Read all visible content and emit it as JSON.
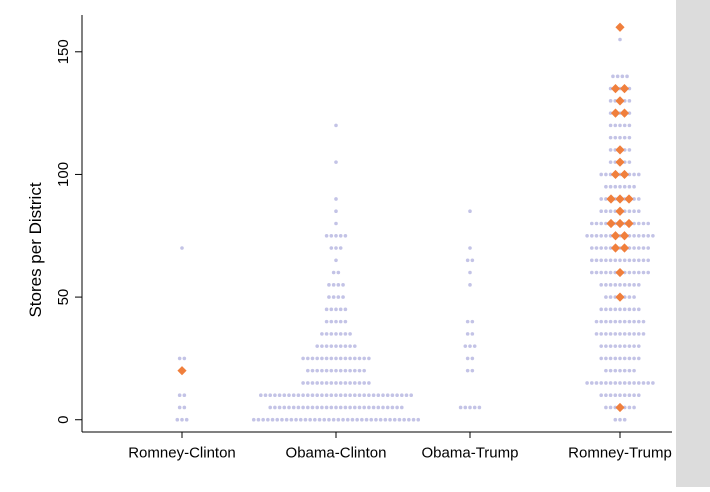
{
  "chart_data": {
    "type": "scatter",
    "title": "",
    "xlabel": "",
    "ylabel": "Stores per District",
    "ylim": [
      -5,
      165
    ],
    "yticks": [
      0,
      50,
      100,
      150
    ],
    "categories": [
      "Romney-Clinton",
      "Obama-Clinton",
      "Obama-Trump",
      "Romney-Trump"
    ],
    "grid": false,
    "legend": "none",
    "colors": {
      "districts": "#c3c3e6",
      "highlighted": "#f07f3c"
    },
    "series": [
      {
        "marker": "dot",
        "groups": [
          [
            [
              0,
              3
            ],
            [
              5,
              2
            ],
            [
              10,
              2
            ],
            [
              20,
              1
            ],
            [
              25,
              2
            ],
            [
              70,
              1
            ]
          ],
          [
            [
              0,
              36
            ],
            [
              5,
              29
            ],
            [
              10,
              33
            ],
            [
              15,
              15
            ],
            [
              20,
              13
            ],
            [
              25,
              15
            ],
            [
              30,
              9
            ],
            [
              35,
              7
            ],
            [
              40,
              5
            ],
            [
              45,
              5
            ],
            [
              50,
              4
            ],
            [
              55,
              4
            ],
            [
              60,
              2
            ],
            [
              65,
              1
            ],
            [
              70,
              3
            ],
            [
              75,
              5
            ],
            [
              80,
              1
            ],
            [
              85,
              1
            ],
            [
              90,
              1
            ],
            [
              105,
              1
            ],
            [
              120,
              1
            ]
          ],
          [
            [
              5,
              5
            ],
            [
              20,
              2
            ],
            [
              25,
              2
            ],
            [
              30,
              3
            ],
            [
              35,
              2
            ],
            [
              40,
              2
            ],
            [
              55,
              1
            ],
            [
              60,
              1
            ],
            [
              65,
              2
            ],
            [
              70,
              1
            ],
            [
              85,
              1
            ]
          ],
          [
            [
              0,
              3
            ],
            [
              5,
              7
            ],
            [
              10,
              9
            ],
            [
              15,
              15
            ],
            [
              20,
              7
            ],
            [
              25,
              9
            ],
            [
              30,
              9
            ],
            [
              35,
              11
            ],
            [
              40,
              11
            ],
            [
              45,
              9
            ],
            [
              50,
              7
            ],
            [
              55,
              9
            ],
            [
              60,
              13
            ],
            [
              65,
              13
            ],
            [
              70,
              13
            ],
            [
              75,
              15
            ],
            [
              80,
              13
            ],
            [
              85,
              9
            ],
            [
              90,
              9
            ],
            [
              95,
              7
            ],
            [
              100,
              9
            ],
            [
              105,
              5
            ],
            [
              110,
              5
            ],
            [
              115,
              5
            ],
            [
              120,
              5
            ],
            [
              125,
              5
            ],
            [
              130,
              5
            ],
            [
              135,
              5
            ],
            [
              140,
              4
            ],
            [
              155,
              1
            ]
          ]
        ]
      },
      {
        "marker": "diamond",
        "groups": [
          [
            [
              20,
              1
            ]
          ],
          [],
          [],
          [
            [
              5,
              1
            ],
            [
              50,
              1
            ],
            [
              60,
              1
            ],
            [
              70,
              2
            ],
            [
              75,
              2
            ],
            [
              80,
              3
            ],
            [
              85,
              1
            ],
            [
              90,
              3
            ],
            [
              100,
              2
            ],
            [
              105,
              1
            ],
            [
              110,
              1
            ],
            [
              125,
              2
            ],
            [
              130,
              1
            ],
            [
              135,
              2
            ],
            [
              160,
              1
            ]
          ]
        ]
      }
    ]
  }
}
